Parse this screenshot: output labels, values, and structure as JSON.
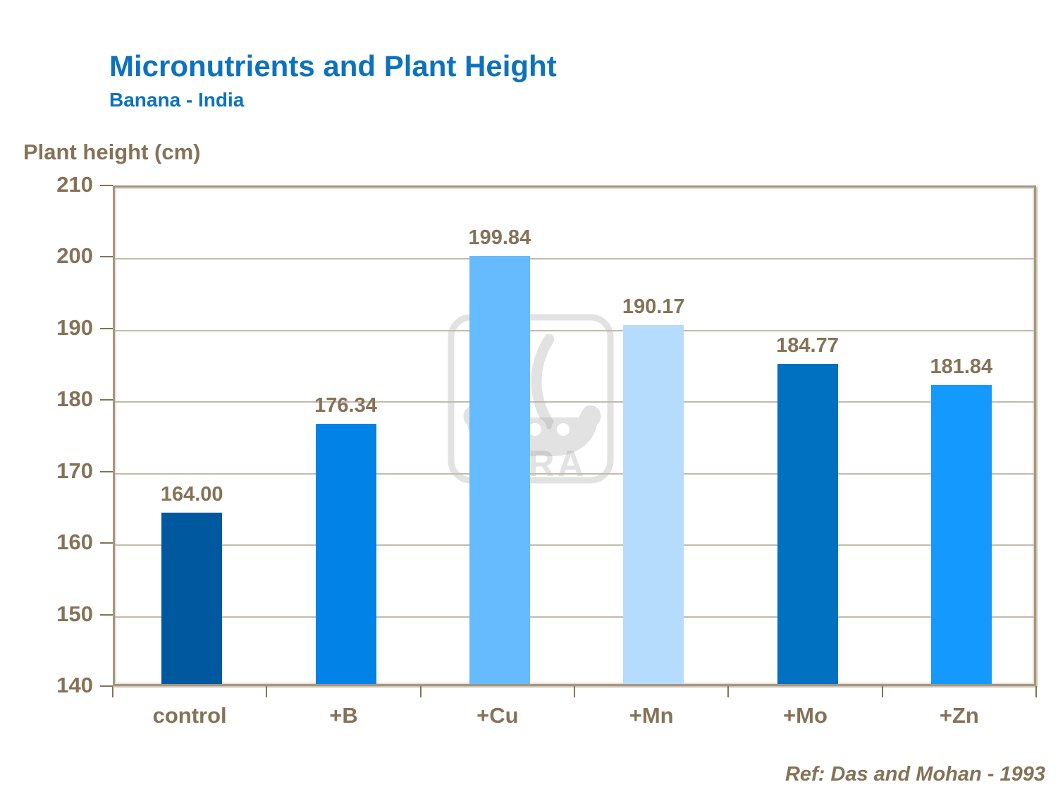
{
  "header": {
    "title": "Micronutrients and Plant Height",
    "subtitle": "Banana - India"
  },
  "chart_data": {
    "type": "bar",
    "categories": [
      "control",
      "+B",
      "+Cu",
      "+Mn",
      "+Mo",
      "+Zn"
    ],
    "values": [
      164.0,
      176.34,
      199.84,
      190.17,
      184.77,
      181.84
    ],
    "value_labels": [
      "164.00",
      "176.34",
      "199.84",
      "190.17",
      "184.77",
      "181.84"
    ],
    "bar_colors": [
      "#00589e",
      "#0082e6",
      "#66bbff",
      "#b5dcfc",
      "#0070c0",
      "#149aff"
    ],
    "title": "Micronutrients and Plant Height",
    "subtitle": "Banana - India",
    "xlabel": "",
    "ylabel": "Plant height (cm)",
    "ylim": [
      140,
      210
    ],
    "ytick_step": 10,
    "ytick_labels": [
      "140",
      "150",
      "160",
      "170",
      "180",
      "190",
      "200",
      "210"
    ],
    "grid": true,
    "legend": false
  },
  "footer": {
    "reference": "Ref: Das and Mohan - 1993"
  },
  "watermark": {
    "name": "yara-logo",
    "text": "YARA"
  },
  "colors": {
    "title_blue": "#0d72be",
    "label_brown": "#857257",
    "axis_tan": "#a69681",
    "gridline_tan": "#c4baa9",
    "watermark_gray": "#e8e6e3"
  }
}
